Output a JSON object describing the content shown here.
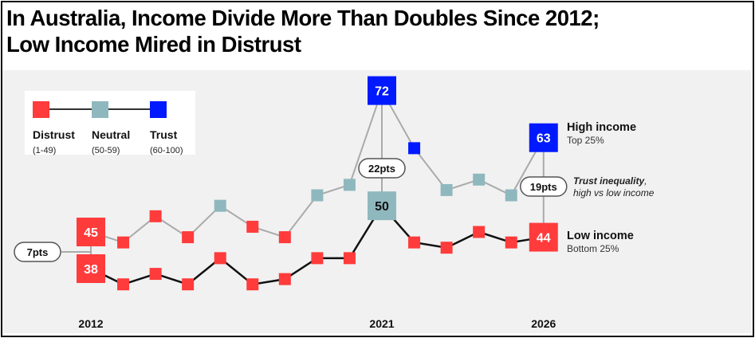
{
  "title_lines": [
    "In Australia, Income Divide More Than Doubles Since 2012;",
    "Low Income Mired in Distrust"
  ],
  "legend": {
    "items": [
      {
        "label": "Distrust",
        "range": "(1-49)",
        "color": "#ff3b3b"
      },
      {
        "label": "Neutral",
        "range": "(50-59)",
        "color": "#8fb8be"
      },
      {
        "label": "Trust",
        "range": "(60-100)",
        "color": "#0019ff"
      }
    ]
  },
  "colors": {
    "distrust": "#ff3b3b",
    "neutral": "#8fb8be",
    "trust": "#0019ff",
    "high_line": "#aaaaaa",
    "low_line": "#111111",
    "background": "#f1f1f1"
  },
  "chart_data": {
    "type": "line",
    "title": "In Australia, Income Divide More Than Doubles Since 2012; Low Income Mired in Distrust",
    "x": [
      2012,
      2013,
      2014,
      2015,
      2016,
      2017,
      2018,
      2019,
      2020,
      2021,
      2022,
      2023,
      2024,
      2025,
      2026
    ],
    "tick_labels": [
      "2012",
      "2021",
      "2026"
    ],
    "tick_years": [
      2012,
      2021,
      2026
    ],
    "xlabel": "",
    "ylabel": "",
    "ylim": [
      33,
      74
    ],
    "grid": false,
    "color_thresholds": {
      "distrust": [
        1,
        49
      ],
      "neutral": [
        50,
        59
      ],
      "trust": [
        60,
        100
      ]
    },
    "series": [
      {
        "name": "High income",
        "sublabel": "Top 25%",
        "values": [
          45,
          43,
          48,
          44,
          50,
          46,
          44,
          52,
          54,
          72,
          61,
          53,
          55,
          52,
          63
        ],
        "labeled_years": [
          2012,
          2021,
          2026
        ]
      },
      {
        "name": "Low income",
        "sublabel": "Bottom 25%",
        "values": [
          38,
          35,
          37,
          35,
          40,
          35,
          36,
          40,
          40,
          50,
          43,
          42,
          45,
          43,
          44
        ],
        "labeled_years": [
          2012,
          2021,
          2026
        ]
      }
    ],
    "annotations": [
      {
        "year": 2012,
        "text": "7pts",
        "position": "left"
      },
      {
        "year": 2021,
        "text": "22pts",
        "position": "center"
      },
      {
        "year": 2026,
        "text": "19pts",
        "position": "center"
      }
    ],
    "gap_note": {
      "bold": "Trust inequality",
      "rest": ",",
      "line2": "high vs low income"
    }
  }
}
